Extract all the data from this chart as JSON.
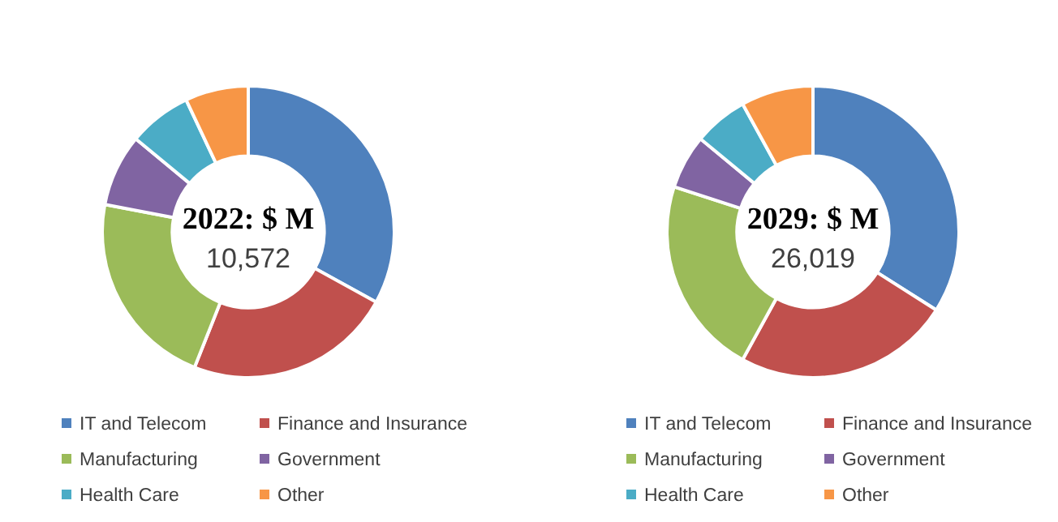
{
  "chart_data": [
    {
      "type": "donut",
      "title": "2022: $ M",
      "subtitle": "10,572",
      "categories": [
        "IT and Telecom",
        "Finance and Insurance",
        "Manufacturing",
        "Government",
        "Health Care",
        "Other"
      ],
      "values": [
        33,
        23,
        22,
        8,
        7,
        7
      ],
      "colors": [
        "#4f81bd",
        "#c0504d",
        "#9bbb59",
        "#8064a2",
        "#4bacc6",
        "#f79646"
      ],
      "legend": "bottom"
    },
    {
      "type": "donut",
      "title": "2029: $ M",
      "subtitle": "26,019",
      "categories": [
        "IT and Telecom",
        "Finance and Insurance",
        "Manufacturing",
        "Government",
        "Health Care",
        "Other"
      ],
      "values": [
        34,
        24,
        22,
        6,
        6,
        8
      ],
      "colors": [
        "#4f81bd",
        "#c0504d",
        "#9bbb59",
        "#8064a2",
        "#4bacc6",
        "#f79646"
      ],
      "legend": "bottom"
    }
  ]
}
